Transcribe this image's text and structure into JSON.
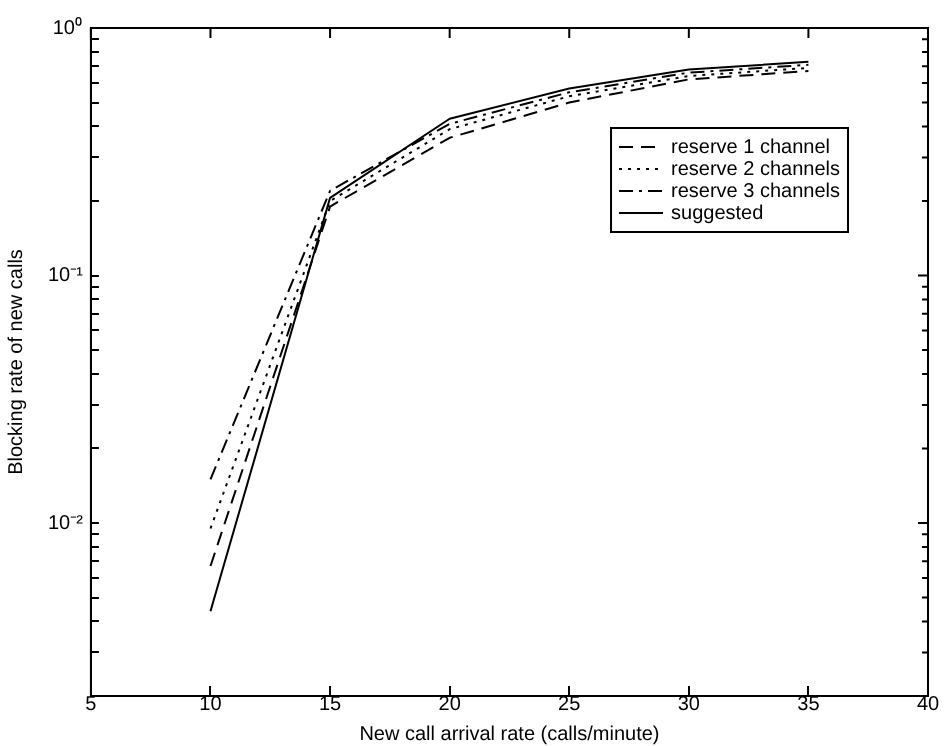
{
  "chart_data": {
    "type": "line",
    "xlabel": "New call arrival rate (calls/minute)",
    "ylabel": "Blocking rate of new calls",
    "x": [
      10,
      15,
      20,
      25,
      30,
      35
    ],
    "series": [
      {
        "name": "reserve 1 channel",
        "color": "#000000",
        "line_style": "dashed",
        "values": [
          0.0067,
          0.19,
          0.36,
          0.5,
          0.62,
          0.67
        ]
      },
      {
        "name": "reserve 2 channels",
        "color": "#000000",
        "line_style": "dotted",
        "values": [
          0.0095,
          0.2,
          0.39,
          0.53,
          0.64,
          0.69
        ]
      },
      {
        "name": "reserve 3 channels",
        "color": "#000000",
        "line_style": "dashdot",
        "values": [
          0.015,
          0.22,
          0.41,
          0.55,
          0.66,
          0.71
        ]
      },
      {
        "name": "suggested",
        "color": "#000000",
        "line_style": "solid",
        "values": [
          0.0044,
          0.206,
          0.43,
          0.57,
          0.68,
          0.73
        ]
      }
    ],
    "log": "y",
    "xlim": [
      5,
      40
    ],
    "xticks": [
      5,
      10,
      15,
      20,
      25,
      30,
      35,
      40
    ],
    "ylim": [
      0.002,
      1
    ],
    "yticks": [
      {
        "value": 0.002,
        "label": null
      },
      {
        "value": 0.003,
        "label": null
      },
      {
        "value": 0.004,
        "label": null
      },
      {
        "value": 0.005,
        "label": null
      },
      {
        "value": 0.006,
        "label": null
      },
      {
        "value": 0.007,
        "label": null
      },
      {
        "value": 0.008,
        "label": null
      },
      {
        "value": 0.009,
        "label": null
      },
      {
        "value": 0.01,
        "label": "10⁻²"
      },
      {
        "value": 0.02,
        "label": null
      },
      {
        "value": 0.03,
        "label": null
      },
      {
        "value": 0.04,
        "label": null
      },
      {
        "value": 0.05,
        "label": null
      },
      {
        "value": 0.06,
        "label": null
      },
      {
        "value": 0.07,
        "label": null
      },
      {
        "value": 0.08,
        "label": null
      },
      {
        "value": 0.09,
        "label": null
      },
      {
        "value": 0.1,
        "label": "10⁻¹"
      },
      {
        "value": 0.2,
        "label": null
      },
      {
        "value": 0.3,
        "label": null
      },
      {
        "value": 0.4,
        "label": null
      },
      {
        "value": 0.5,
        "label": null
      },
      {
        "value": 0.6,
        "label": null
      },
      {
        "value": 0.7,
        "label": null
      },
      {
        "value": 0.8,
        "label": null
      },
      {
        "value": 0.9,
        "label": null
      },
      {
        "value": 1,
        "label": "10⁰"
      }
    ],
    "grid": false,
    "legend": "top right",
    "marker": "none"
  }
}
